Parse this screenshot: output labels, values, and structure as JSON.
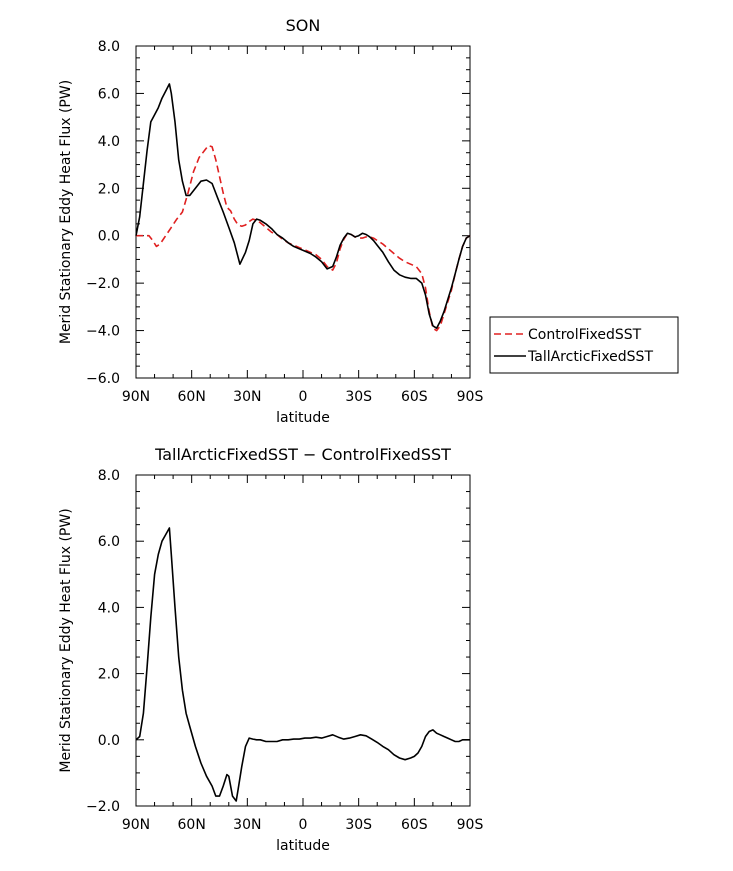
{
  "chart_data": [
    {
      "type": "line",
      "title": "SON",
      "xlabel": "latitude",
      "ylabel": "Merid Stationary Eddy Heat Flux (PW)",
      "xlim": [
        90,
        -90
      ],
      "ylim": [
        -6,
        8
      ],
      "xticks": [
        90,
        60,
        30,
        0,
        -30,
        -60,
        -90
      ],
      "xtick_labels": [
        "90N",
        "60N",
        "30N",
        "0",
        "30S",
        "60S",
        "90S"
      ],
      "yticks": [
        -6,
        -4,
        -2,
        0,
        2,
        4,
        6,
        8
      ],
      "ytick_labels": [
        "−6.0",
        "−4.0",
        "−2.0",
        "0.0",
        "2.0",
        "4.0",
        "6.0",
        "8.0"
      ],
      "legend": "right",
      "series": [
        {
          "name": "ControlFixedSST",
          "color": "#e02020",
          "dash": "dashed",
          "x": [
            90,
            87,
            85,
            83,
            81,
            79,
            77,
            74,
            71,
            68,
            65,
            62,
            59,
            56,
            53,
            51,
            49,
            47,
            45,
            43,
            41,
            39,
            37,
            35,
            33,
            31,
            29,
            27,
            25,
            23,
            20,
            17,
            14,
            11,
            8,
            5,
            2,
            -1,
            -4,
            -7,
            -10,
            -13,
            -16,
            -18,
            -20,
            -22,
            -24,
            -26,
            -28,
            -30,
            -32,
            -34,
            -36,
            -38,
            -40,
            -43,
            -46,
            -49,
            -52,
            -55,
            -58,
            -61,
            -64,
            -66,
            -68,
            -70,
            -72,
            -74,
            -76,
            -78,
            -80,
            -82,
            -84,
            -86,
            -88,
            -90
          ],
          "y": [
            0,
            0,
            0,
            0,
            -0.2,
            -0.45,
            -0.35,
            0,
            0.35,
            0.7,
            1.0,
            1.8,
            2.7,
            3.3,
            3.6,
            3.8,
            3.75,
            3.2,
            2.5,
            1.8,
            1.2,
            1.05,
            0.7,
            0.45,
            0.4,
            0.45,
            0.6,
            0.7,
            0.65,
            0.55,
            0.35,
            0.15,
            0.05,
            -0.15,
            -0.3,
            -0.4,
            -0.5,
            -0.6,
            -0.7,
            -0.8,
            -1.0,
            -1.3,
            -1.45,
            -1.15,
            -0.55,
            -0.15,
            0.1,
            0.05,
            -0.05,
            -0.1,
            -0.1,
            -0.05,
            -0.05,
            -0.1,
            -0.2,
            -0.35,
            -0.55,
            -0.75,
            -0.95,
            -1.1,
            -1.2,
            -1.3,
            -1.6,
            -2.2,
            -3.2,
            -3.9,
            -4.0,
            -3.8,
            -3.3,
            -2.8,
            -2.3,
            -1.6,
            -1.0,
            -0.45,
            -0.1,
            0
          ]
        },
        {
          "name": "TallArcticFixedSST",
          "color": "#000000",
          "dash": "solid",
          "x": [
            90,
            88,
            86,
            84,
            82,
            80,
            78,
            76,
            74,
            72,
            71,
            69,
            67,
            65,
            63,
            61,
            58,
            55,
            52,
            49,
            46,
            43,
            40,
            37,
            34,
            31,
            29,
            27,
            25,
            23,
            20,
            17,
            14,
            11,
            8,
            5,
            2,
            -1,
            -4,
            -7,
            -10,
            -13,
            -16,
            -18,
            -20,
            -22,
            -24,
            -26,
            -28,
            -30,
            -32,
            -34,
            -36,
            -38,
            -40,
            -43,
            -46,
            -49,
            -52,
            -55,
            -58,
            -61,
            -64,
            -66,
            -68,
            -70,
            -72,
            -74,
            -76,
            -78,
            -80,
            -82,
            -84,
            -86,
            -88,
            -90
          ],
          "y": [
            0,
            0.8,
            2.2,
            3.6,
            4.8,
            5.1,
            5.4,
            5.8,
            6.1,
            6.4,
            6.0,
            4.8,
            3.2,
            2.3,
            1.7,
            1.7,
            2.0,
            2.3,
            2.35,
            2.2,
            1.6,
            1.0,
            0.35,
            -0.3,
            -1.2,
            -0.7,
            -0.2,
            0.5,
            0.7,
            0.65,
            0.5,
            0.3,
            0.05,
            -0.1,
            -0.3,
            -0.45,
            -0.55,
            -0.65,
            -0.75,
            -0.9,
            -1.1,
            -1.4,
            -1.3,
            -0.9,
            -0.4,
            -0.1,
            0.1,
            0.05,
            -0.05,
            0,
            0.1,
            0.05,
            -0.05,
            -0.2,
            -0.4,
            -0.7,
            -1.1,
            -1.45,
            -1.65,
            -1.75,
            -1.8,
            -1.8,
            -2.0,
            -2.5,
            -3.3,
            -3.8,
            -3.9,
            -3.6,
            -3.2,
            -2.7,
            -2.2,
            -1.6,
            -1.0,
            -0.45,
            -0.1,
            0
          ]
        }
      ]
    },
    {
      "type": "line",
      "title": "TallArcticFixedSST − ControlFixedSST",
      "xlabel": "latitude",
      "ylabel": "Merid Stationary Eddy Heat Flux (PW)",
      "xlim": [
        90,
        -90
      ],
      "ylim": [
        -2,
        8
      ],
      "xticks": [
        90,
        60,
        30,
        0,
        -30,
        -60,
        -90
      ],
      "xtick_labels": [
        "90N",
        "60N",
        "30N",
        "0",
        "30S",
        "60S",
        "90S"
      ],
      "yticks": [
        -2,
        0,
        2,
        4,
        6,
        8
      ],
      "ytick_labels": [
        "−2.0",
        "0.0",
        "2.0",
        "4.0",
        "6.0",
        "8.0"
      ],
      "series": [
        {
          "color": "#000000",
          "dash": "solid",
          "x": [
            90,
            88,
            86,
            84,
            82,
            80,
            78,
            76,
            74,
            72,
            71,
            69,
            67,
            65,
            63,
            61,
            58,
            55,
            52,
            49,
            47,
            45,
            43,
            41,
            40,
            38,
            36,
            35,
            33,
            31,
            29,
            27,
            25,
            23,
            20,
            17,
            14,
            11,
            8,
            5,
            2,
            -1,
            -4,
            -7,
            -10,
            -13,
            -16,
            -19,
            -22,
            -25,
            -28,
            -31,
            -34,
            -37,
            -40,
            -43,
            -46,
            -49,
            -52,
            -55,
            -58,
            -60,
            -62,
            -64,
            -66,
            -68,
            -70,
            -72,
            -74,
            -76,
            -78,
            -80,
            -82,
            -84,
            -86,
            -88,
            -90
          ],
          "y": [
            0,
            0.1,
            0.8,
            2.2,
            3.7,
            5.0,
            5.6,
            6.0,
            6.2,
            6.4,
            5.6,
            4.0,
            2.5,
            1.5,
            0.8,
            0.4,
            -0.2,
            -0.7,
            -1.1,
            -1.4,
            -1.7,
            -1.7,
            -1.4,
            -1.05,
            -1.1,
            -1.7,
            -1.85,
            -1.5,
            -0.8,
            -0.2,
            0.05,
            0.02,
            0,
            0,
            -0.05,
            -0.05,
            -0.05,
            0,
            0,
            0.02,
            0.02,
            0.05,
            0.05,
            0.08,
            0.05,
            0.1,
            0.15,
            0.08,
            0.02,
            0.05,
            0.1,
            0.15,
            0.12,
            0.02,
            -0.08,
            -0.2,
            -0.3,
            -0.45,
            -0.55,
            -0.6,
            -0.55,
            -0.5,
            -0.4,
            -0.2,
            0.1,
            0.25,
            0.3,
            0.2,
            0.15,
            0.1,
            0.05,
            0,
            -0.05,
            -0.05,
            0,
            0,
            0
          ]
        }
      ]
    }
  ]
}
